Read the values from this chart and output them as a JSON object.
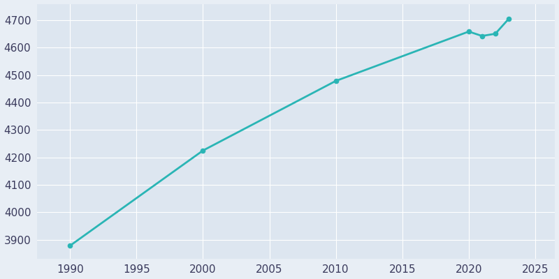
{
  "years": [
    1990,
    2000,
    2010,
    2020,
    2021,
    2022,
    2023
  ],
  "population": [
    3878,
    4225,
    4479,
    4659,
    4643,
    4651,
    4705
  ],
  "line_color": "#2ab5b5",
  "bg_color": "#e8eef5",
  "plot_bg_color": "#dde6f0",
  "tick_color": "#3a3a5c",
  "grid_color": "#ffffff",
  "xlim": [
    1987.5,
    2026.5
  ],
  "ylim": [
    3830,
    4760
  ],
  "yticks": [
    3900,
    4000,
    4100,
    4200,
    4300,
    4400,
    4500,
    4600,
    4700
  ],
  "xticks": [
    1990,
    1995,
    2000,
    2005,
    2010,
    2015,
    2020,
    2025
  ],
  "line_width": 2.0,
  "marker_size": 4.5,
  "figsize": [
    8.0,
    4.0
  ],
  "dpi": 100
}
